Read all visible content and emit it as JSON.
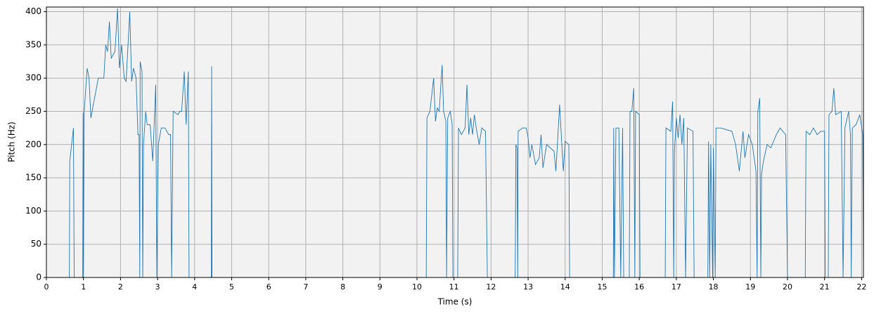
{
  "chart_data": {
    "type": "line",
    "x_label": "Time (s)",
    "y_label": "Pitch (Hz)",
    "color": "#1f77b4",
    "grid": true,
    "xlim": [
      0,
      22.05
    ],
    "ylim": [
      0,
      407
    ],
    "xticks": [
      0,
      1,
      2,
      3,
      4,
      5,
      6,
      7,
      8,
      9,
      10,
      11,
      12,
      13,
      14,
      15,
      16,
      17,
      18,
      19,
      20,
      21,
      22
    ],
    "yticks": [
      0,
      50,
      100,
      150,
      200,
      250,
      300,
      350,
      400
    ],
    "x": [
      0,
      0.62,
      0.63,
      0.68,
      0.73,
      0.75,
      0.98,
      0.99,
      1.0,
      1.02,
      1.1,
      1.15,
      1.2,
      1.3,
      1.4,
      1.55,
      1.6,
      1.65,
      1.7,
      1.75,
      1.85,
      1.92,
      1.97,
      2.03,
      2.1,
      2.15,
      2.25,
      2.3,
      2.35,
      2.42,
      2.47,
      2.5,
      2.52,
      2.53,
      2.58,
      2.6,
      2.62,
      2.68,
      2.72,
      2.8,
      2.87,
      2.95,
      2.98,
      3.02,
      3.1,
      3.2,
      3.3,
      3.35,
      3.38,
      3.42,
      3.55,
      3.6,
      3.65,
      3.72,
      3.77,
      3.83,
      3.85,
      4.45,
      4.46,
      4.47,
      10.25,
      10.27,
      10.35,
      10.45,
      10.5,
      10.55,
      10.6,
      10.68,
      10.72,
      10.78,
      10.8,
      10.83,
      10.9,
      10.95,
      10.97,
      11.1,
      11.12,
      11.2,
      11.3,
      11.35,
      11.4,
      11.45,
      11.5,
      11.55,
      11.6,
      11.68,
      11.75,
      11.85,
      11.9,
      12.65,
      12.67,
      12.7,
      12.72,
      12.73,
      12.85,
      12.95,
      13.0,
      13.05,
      13.1,
      13.2,
      13.3,
      13.35,
      13.4,
      13.5,
      13.6,
      13.7,
      13.75,
      13.85,
      13.95,
      14.0,
      14.1,
      14.12,
      15.3,
      15.31,
      15.33,
      15.37,
      15.45,
      15.5,
      15.55,
      15.58,
      15.73,
      15.75,
      15.8,
      15.85,
      15.88,
      15.9,
      16.0,
      16.02,
      16.7,
      16.72,
      16.85,
      16.9,
      16.93,
      16.95,
      17.0,
      17.05,
      17.1,
      17.15,
      17.2,
      17.25,
      17.3,
      17.45,
      17.48,
      17.85,
      17.87,
      17.9,
      17.93,
      17.98,
      18.0,
      18.05,
      18.07,
      18.2,
      18.5,
      18.6,
      18.7,
      18.8,
      18.85,
      18.95,
      19.05,
      19.15,
      19.18,
      19.2,
      19.25,
      19.28,
      19.3,
      19.35,
      19.45,
      19.55,
      19.7,
      19.8,
      19.95,
      20.0,
      20.48,
      20.5,
      20.6,
      20.7,
      20.8,
      20.9,
      21.0,
      21.02,
      21.1,
      21.12,
      21.2,
      21.25,
      21.3,
      21.45,
      21.5,
      21.55,
      21.65,
      21.7,
      21.72,
      21.75,
      21.85,
      21.95,
      22.03,
      22.05
    ],
    "values": [
      0,
      0,
      175,
      200,
      225,
      0,
      0,
      248,
      0,
      250,
      315,
      300,
      240,
      270,
      300,
      300,
      350,
      340,
      385,
      330,
      340,
      405,
      315,
      350,
      300,
      295,
      400,
      295,
      315,
      300,
      215,
      215,
      0,
      325,
      310,
      0,
      200,
      250,
      230,
      230,
      175,
      290,
      0,
      200,
      225,
      225,
      215,
      215,
      0,
      250,
      245,
      250,
      250,
      310,
      230,
      310,
      0,
      0,
      318,
      0,
      0,
      240,
      250,
      300,
      235,
      255,
      250,
      320,
      250,
      235,
      0,
      240,
      250,
      230,
      0,
      0,
      225,
      215,
      225,
      290,
      215,
      240,
      215,
      245,
      225,
      200,
      225,
      220,
      0,
      0,
      200,
      195,
      0,
      220,
      225,
      225,
      210,
      180,
      200,
      170,
      180,
      215,
      165,
      200,
      195,
      190,
      160,
      260,
      160,
      205,
      200,
      0,
      0,
      225,
      0,
      225,
      225,
      0,
      225,
      0,
      0,
      250,
      250,
      285,
      0,
      250,
      245,
      0,
      0,
      225,
      220,
      265,
      0,
      190,
      240,
      210,
      245,
      200,
      240,
      0,
      225,
      220,
      0,
      0,
      205,
      0,
      200,
      0,
      195,
      0,
      225,
      225,
      220,
      200,
      160,
      220,
      180,
      215,
      200,
      160,
      0,
      250,
      270,
      0,
      155,
      175,
      200,
      195,
      215,
      225,
      215,
      0,
      0,
      220,
      215,
      225,
      215,
      220,
      220,
      0,
      0,
      245,
      250,
      285,
      245,
      250,
      0,
      225,
      250,
      215,
      0,
      225,
      230,
      245,
      215,
      0
    ]
  }
}
